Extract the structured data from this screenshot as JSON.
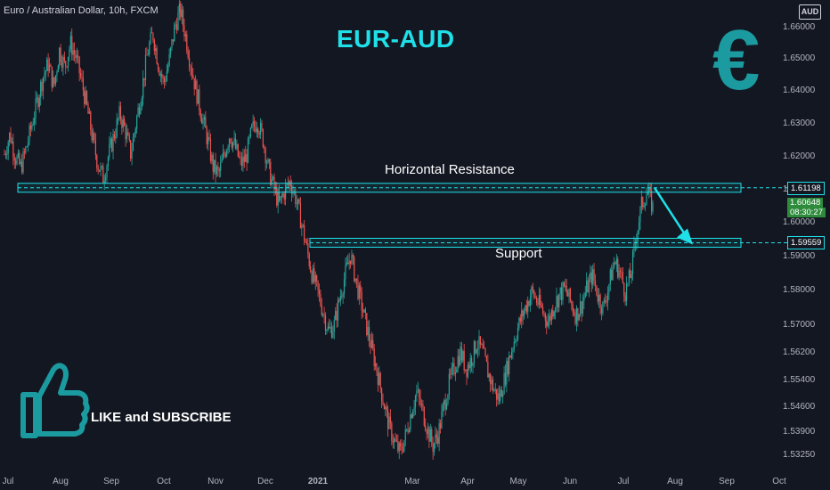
{
  "header": {
    "symbol": "Euro / Australian Dollar, 10h, FXCM",
    "title": "EUR-AUD",
    "currency_badge": "AUD",
    "euro_symbol": "€"
  },
  "annotations": {
    "resistance_label": "Horizontal Resistance",
    "support_label": "Support",
    "cta": "LIKE and SUBSCRIBE"
  },
  "colors": {
    "background": "#131722",
    "accent": "#1fe0e8",
    "up": "#26a69a",
    "down": "#ef5350",
    "current_price": "#2e8b3c"
  },
  "chart_data": {
    "type": "candlestick",
    "x_labels": [
      "Jul",
      "Aug",
      "Sep",
      "Oct",
      "Nov",
      "Dec",
      "2021",
      "Mar",
      "Apr",
      "May",
      "Jun",
      "Jul",
      "Aug",
      "Sep",
      "Oct"
    ],
    "y_ticks": [
      "1.66000",
      "1.65000",
      "1.64000",
      "1.63000",
      "1.62000",
      "1.61000",
      "1.60000",
      "1.59000",
      "1.58000",
      "1.57000",
      "1.56200",
      "1.55400",
      "1.54600",
      "1.53900",
      "1.53250"
    ],
    "ylim": [
      1.5325,
      1.66
    ],
    "resistance": 1.61198,
    "support": 1.59559,
    "current_price": "1.60648",
    "countdown": "08:30:27",
    "resistance_tag": "1.61198",
    "support_tag": "1.59559",
    "price_path": [
      1.622,
      1.628,
      1.621,
      1.618,
      1.624,
      1.631,
      1.638,
      1.645,
      1.649,
      1.642,
      1.653,
      1.648,
      1.655,
      1.651,
      1.644,
      1.636,
      1.627,
      1.619,
      1.615,
      1.622,
      1.628,
      1.634,
      1.629,
      1.622,
      1.632,
      1.641,
      1.652,
      1.658,
      1.649,
      1.643,
      1.65,
      1.66,
      1.665,
      1.657,
      1.648,
      1.64,
      1.633,
      1.626,
      1.618,
      1.616,
      1.622,
      1.628,
      1.624,
      1.619,
      1.621,
      1.629,
      1.632,
      1.627,
      1.618,
      1.612,
      1.607,
      1.611,
      1.614,
      1.609,
      1.602,
      1.594,
      1.586,
      1.581,
      1.575,
      1.569,
      1.571,
      1.579,
      1.586,
      1.592,
      1.584,
      1.577,
      1.57,
      1.563,
      1.556,
      1.548,
      1.541,
      1.536,
      1.533,
      1.538,
      1.545,
      1.551,
      1.546,
      1.54,
      1.535,
      1.539,
      1.547,
      1.554,
      1.559,
      1.563,
      1.558,
      1.561,
      1.566,
      1.563,
      1.557,
      1.552,
      1.549,
      1.555,
      1.562,
      1.568,
      1.573,
      1.577,
      1.581,
      1.578,
      1.575,
      1.572,
      1.577,
      1.58,
      1.582,
      1.578,
      1.574,
      1.577,
      1.582,
      1.586,
      1.58,
      1.576,
      1.583,
      1.59,
      1.587,
      1.581,
      1.586,
      1.598,
      1.607,
      1.611,
      1.606
    ]
  }
}
